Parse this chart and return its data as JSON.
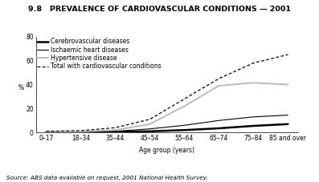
{
  "title": "9.8   PREVALENCE OF CARDIOVASCULAR CONDITIONS — 2001",
  "xlabel": "Age group (years)",
  "ylabel": "%",
  "source": "Source: ABS data available on request, 2001 National Health Survey.",
  "x_labels": [
    "0–17",
    "18–34",
    "35–44",
    "45–54",
    "55–64",
    "65–74",
    "75–84",
    "85 and over"
  ],
  "cerebrovascular": [
    0.3,
    0.3,
    0.5,
    1.0,
    2.0,
    3.5,
    5.5,
    7.0
  ],
  "ischaemic": [
    0.2,
    0.5,
    1.0,
    3.0,
    6.0,
    10.0,
    13.0,
    14.5
  ],
  "hypertensive": [
    0.5,
    0.8,
    2.0,
    7.0,
    22.0,
    39.0,
    41.5,
    40.0
  ],
  "total": [
    1.0,
    1.5,
    4.0,
    11.0,
    28.0,
    45.0,
    58.0,
    65.0
  ],
  "ylim": [
    0,
    80
  ],
  "yticks": [
    0,
    20,
    40,
    60,
    80
  ],
  "legend_labels": [
    "Cerebrovascular diseases",
    "Ischaemic heart diseases",
    "Hypertensive disease",
    "Total with cardiovascular conditions"
  ],
  "cerebro_color": "#000000",
  "ischaemic_color": "#000000",
  "hypertensive_color": "#bbbbbb",
  "total_color": "#000000",
  "bg_color": "#ffffff",
  "title_fontsize": 6.8,
  "axis_fontsize": 5.5,
  "tick_fontsize": 5.5,
  "legend_fontsize": 5.5,
  "source_fontsize": 5.2
}
